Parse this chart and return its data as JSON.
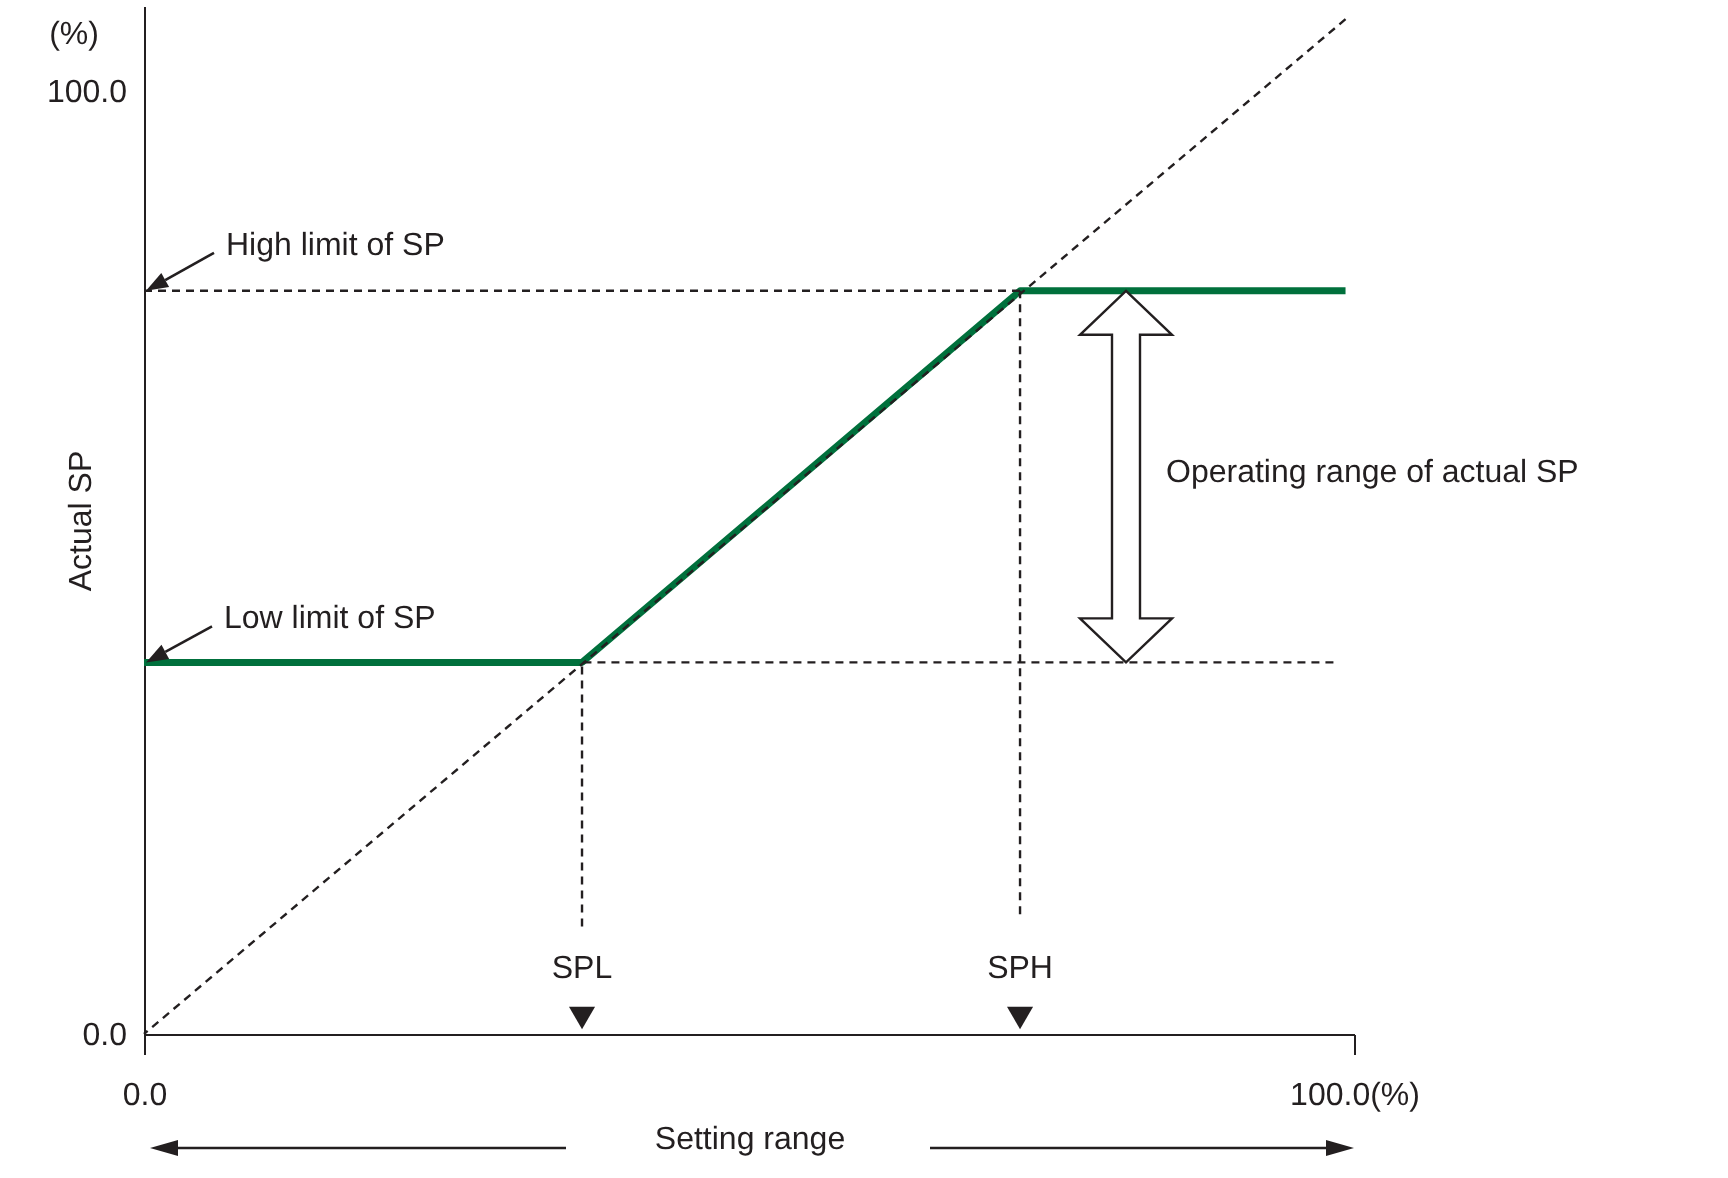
{
  "chart_data": {
    "type": "line",
    "xlabel": "Setting range",
    "ylabel": "Actual SP",
    "xlim": [
      0,
      100
    ],
    "ylim": [
      0,
      109
    ],
    "xticks": [
      {
        "value": 0,
        "label": "0.0"
      },
      {
        "value": 100,
        "label": "100.0(%)"
      }
    ],
    "yticks": [
      {
        "value": 0,
        "label": "0.0"
      },
      {
        "value": 100,
        "label": "100.0"
      }
    ],
    "grid": false,
    "series": [
      {
        "type": "line",
        "color": "#00703c",
        "line_style": "solid",
        "x": [
          0,
          36.2,
          72.4,
          99.3
        ],
        "values": [
          39.4,
          39.4,
          78.8,
          78.8
        ]
      },
      {
        "type": "line",
        "color": "#231f20",
        "line_style": "dashed",
        "x": [
          99.3,
          0
        ],
        "values": [
          107.6,
          0
        ]
      },
      {
        "type": "line",
        "color": "#231f20",
        "line_style": "dashed",
        "x": [
          0,
          72.4
        ],
        "values": [
          78.8,
          78.8
        ]
      },
      {
        "type": "line",
        "color": "#231f20",
        "line_style": "dashed",
        "x": [
          98.3,
          36.2
        ],
        "values": [
          39.4,
          39.4
        ]
      },
      {
        "type": "line",
        "color": "#231f20",
        "line_style": "dashed",
        "x": [
          36.2,
          36.2
        ],
        "values": [
          11.4,
          39.4
        ]
      },
      {
        "type": "line",
        "color": "#231f20",
        "line_style": "dashed",
        "x": [
          72.4,
          72.4
        ],
        "values": [
          12.7,
          78.8
        ]
      },
      {
        "type": "scatter",
        "color": "#231f20",
        "marker": "triangle",
        "x": [
          36.2,
          72.4
        ],
        "values": [
          1.7,
          1.7
        ]
      }
    ],
    "annotations": [
      "(%)",
      {
        "text": "High limit of SP",
        "x": 0,
        "y": 78.8
      },
      {
        "text": "Low limit of SP",
        "x": 0,
        "y": 39.4
      },
      {
        "text": "SPL",
        "x": 36.2,
        "y": 1.7
      },
      {
        "text": "SPH",
        "x": 72.4,
        "y": 1.7
      },
      "Operating range of actual SP"
    ]
  }
}
